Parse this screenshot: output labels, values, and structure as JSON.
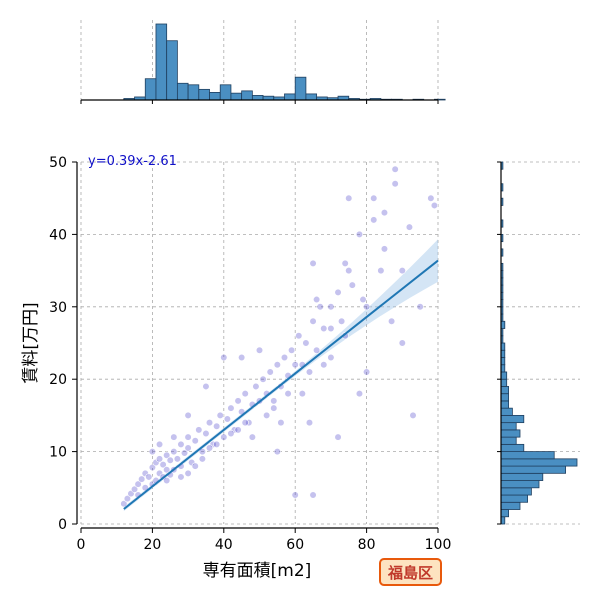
{
  "chart_data": {
    "type": "scatter",
    "title": "",
    "xlabel": "専有面積[m2]",
    "ylabel": "賃料[万円]",
    "xlim": [
      0,
      100
    ],
    "ylim": [
      0,
      50
    ],
    "xticks": [
      "0",
      "20",
      "40",
      "60",
      "80",
      "100"
    ],
    "yticks": [
      "0",
      "10",
      "20",
      "30",
      "40",
      "50"
    ],
    "grid": true,
    "regression": {
      "slope": 0.39,
      "intercept": -2.61,
      "equation": "y=0.39x-2.61",
      "x_range": [
        12,
        100
      ]
    },
    "badge": "福島区",
    "points": [
      [
        12,
        2.8
      ],
      [
        13,
        3.5
      ],
      [
        14,
        4.2
      ],
      [
        15,
        4.8
      ],
      [
        16,
        5.5
      ],
      [
        16,
        4
      ],
      [
        17,
        6.2
      ],
      [
        18,
        5
      ],
      [
        18,
        7
      ],
      [
        19,
        6.5
      ],
      [
        20,
        7.8
      ],
      [
        20,
        5.5
      ],
      [
        21,
        8.5
      ],
      [
        21,
        6
      ],
      [
        22,
        7
      ],
      [
        22,
        9
      ],
      [
        23,
        6.5
      ],
      [
        23,
        8.2
      ],
      [
        24,
        7.5
      ],
      [
        24,
        9.5
      ],
      [
        25,
        6.8
      ],
      [
        25,
        8.8
      ],
      [
        26,
        10
      ],
      [
        26,
        7.5
      ],
      [
        27,
        9
      ],
      [
        28,
        11
      ],
      [
        28,
        8
      ],
      [
        29,
        9.8
      ],
      [
        30,
        12
      ],
      [
        30,
        10.5
      ],
      [
        31,
        8.5
      ],
      [
        32,
        11.5
      ],
      [
        33,
        13
      ],
      [
        34,
        10
      ],
      [
        35,
        12.5
      ],
      [
        36,
        14
      ],
      [
        37,
        11
      ],
      [
        38,
        13.5
      ],
      [
        39,
        15
      ],
      [
        40,
        12
      ],
      [
        41,
        14.5
      ],
      [
        42,
        16
      ],
      [
        43,
        13
      ],
      [
        44,
        17
      ],
      [
        45,
        15.5
      ],
      [
        46,
        18
      ],
      [
        47,
        14
      ],
      [
        48,
        16.5
      ],
      [
        49,
        19
      ],
      [
        50,
        17
      ],
      [
        51,
        20
      ],
      [
        52,
        18
      ],
      [
        53,
        21
      ],
      [
        54,
        16
      ],
      [
        55,
        22
      ],
      [
        56,
        19
      ],
      [
        57,
        23
      ],
      [
        58,
        20.5
      ],
      [
        59,
        24
      ],
      [
        60,
        22
      ],
      [
        61,
        26
      ],
      [
        62,
        18
      ],
      [
        63,
        25
      ],
      [
        64,
        21
      ],
      [
        65,
        28
      ],
      [
        65,
        36
      ],
      [
        66,
        24
      ],
      [
        67,
        30
      ],
      [
        68,
        22
      ],
      [
        70,
        27
      ],
      [
        72,
        32
      ],
      [
        74,
        26
      ],
      [
        75,
        45
      ],
      [
        76,
        33
      ],
      [
        78,
        40
      ],
      [
        80,
        30
      ],
      [
        82,
        42
      ],
      [
        84,
        35
      ],
      [
        85,
        38
      ],
      [
        87,
        28
      ],
      [
        88,
        47
      ],
      [
        90,
        35
      ],
      [
        92,
        41
      ],
      [
        95,
        30
      ],
      [
        98,
        45
      ],
      [
        99,
        44
      ],
      [
        60,
        4
      ],
      [
        65,
        4
      ],
      [
        64,
        14
      ],
      [
        55,
        10
      ],
      [
        40,
        23
      ],
      [
        45,
        23
      ],
      [
        30,
        15
      ],
      [
        35,
        19
      ],
      [
        50,
        24
      ],
      [
        72,
        12
      ],
      [
        78,
        18
      ],
      [
        80,
        21
      ],
      [
        90,
        25
      ],
      [
        93,
        15
      ],
      [
        20,
        10
      ],
      [
        22,
        11
      ],
      [
        24,
        6
      ],
      [
        26,
        12
      ],
      [
        28,
        6.5
      ],
      [
        30,
        7
      ],
      [
        32,
        8
      ],
      [
        34,
        9
      ],
      [
        36,
        10.5
      ],
      [
        38,
        11
      ],
      [
        42,
        12.5
      ],
      [
        44,
        13
      ],
      [
        46,
        14
      ],
      [
        48,
        12
      ],
      [
        52,
        15
      ],
      [
        54,
        17
      ],
      [
        56,
        14
      ],
      [
        58,
        18
      ],
      [
        62,
        22
      ],
      [
        68,
        27
      ],
      [
        70,
        30
      ],
      [
        75,
        35
      ],
      [
        82,
        45
      ],
      [
        85,
        43
      ],
      [
        88,
        49
      ],
      [
        74,
        36
      ],
      [
        66,
        31
      ],
      [
        70,
        23
      ],
      [
        73,
        28
      ],
      [
        79,
        31
      ]
    ],
    "hist_x": {
      "bin_width": 3,
      "start": 12,
      "counts": [
        2,
        4,
        28,
        100,
        78,
        22,
        20,
        14,
        10,
        20,
        9,
        12,
        6,
        5,
        4,
        8,
        30,
        8,
        4,
        3,
        5,
        2,
        1,
        2,
        1,
        1,
        0,
        1,
        0,
        1
      ]
    },
    "hist_y": {
      "bin_width": 1,
      "start": 0,
      "counts": [
        2,
        4,
        10,
        14,
        16,
        20,
        22,
        34,
        40,
        28,
        12,
        8,
        10,
        8,
        12,
        6,
        4,
        4,
        4,
        3,
        3,
        2,
        2,
        2,
        2,
        1,
        1,
        2,
        1,
        1,
        1,
        1,
        1,
        1,
        1,
        1,
        0,
        1,
        0,
        1,
        0,
        1,
        0,
        0,
        1,
        0,
        1,
        0,
        0,
        1
      ]
    }
  }
}
